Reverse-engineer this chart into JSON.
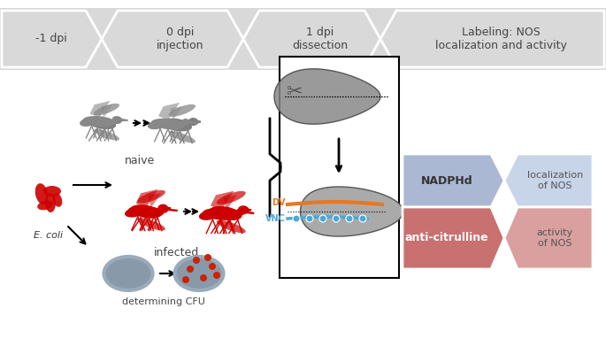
{
  "bg_color": "#ffffff",
  "top_bar_color": "#d9d9d9",
  "arrow_chevron_color": "#d9d9d9",
  "timeline_labels": [
    "-1 dpi",
    "0 dpi\ninjection",
    "1 dpi\ndissection",
    "Labeling: NOS\nlocalization and activity"
  ],
  "nadphd_color": "#aab8d4",
  "anti_cit_color": "#c97070",
  "nadphd_label": "NADPHd",
  "nadphd_result": "localization\nof NOS",
  "anti_cit_label": "anti-citrulline",
  "anti_cit_result": "activity\nof NOS",
  "naive_label": "naive",
  "infected_label": "infected",
  "ecoli_label": "E. coli",
  "cfn_label": "determining CFU",
  "dv_label": "DV",
  "vnc_label": "VNC",
  "orange_color": "#e87722",
  "blue_color": "#4ea8d4",
  "gray_mosquito": "#7f7f7f",
  "red_color": "#cc0000",
  "dark_gray": "#555555"
}
